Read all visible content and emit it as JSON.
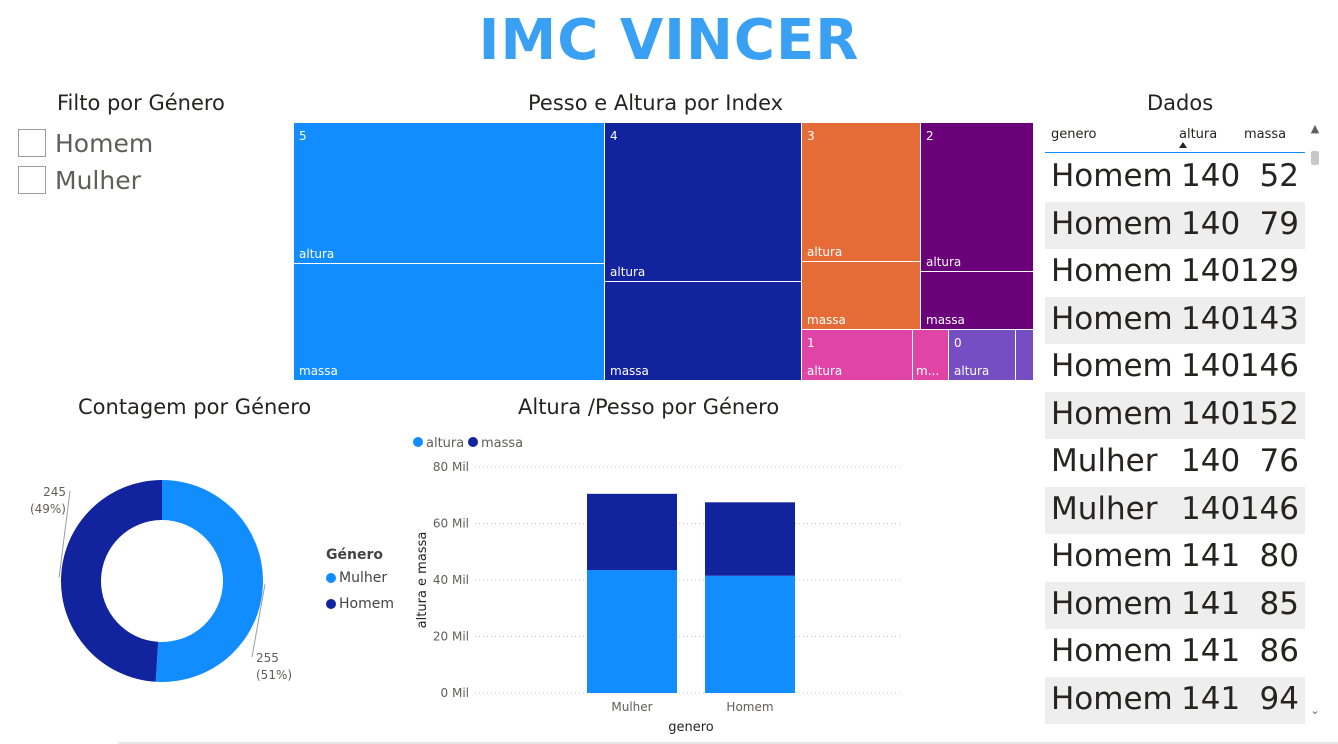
{
  "header": {
    "title": "IMC VINCER"
  },
  "slicer": {
    "title": "Filto por Género",
    "items": [
      {
        "label": "Homem"
      },
      {
        "label": "Mulher"
      }
    ]
  },
  "treemap": {
    "title": "Pesso e Altura por Index",
    "colors": {
      "5": "#118dff",
      "4": "#12239e",
      "3": "#e66c37",
      "2": "#6b007b",
      "1": "#e044a7",
      "0": "#744ec2"
    },
    "groups": [
      {
        "index": "5",
        "children": [
          "altura",
          "massa"
        ]
      },
      {
        "index": "4",
        "children": [
          "altura",
          "massa"
        ]
      },
      {
        "index": "3",
        "children": [
          "altura",
          "massa"
        ]
      },
      {
        "index": "2",
        "children": [
          "altura",
          "massa"
        ]
      },
      {
        "index": "1",
        "children": [
          "altura",
          "m..."
        ]
      },
      {
        "index": "0",
        "children": [
          "altura"
        ]
      }
    ]
  },
  "table": {
    "title": "Dados",
    "columns": [
      "genero",
      "altura",
      "massa"
    ],
    "sorted_by": "altura",
    "rows": [
      [
        "Homem",
        "140",
        "52"
      ],
      [
        "Homem",
        "140",
        "79"
      ],
      [
        "Homem",
        "140",
        "129"
      ],
      [
        "Homem",
        "140",
        "143"
      ],
      [
        "Homem",
        "140",
        "146"
      ],
      [
        "Homem",
        "140",
        "152"
      ],
      [
        "Mulher",
        "140",
        "76"
      ],
      [
        "Mulher",
        "140",
        "146"
      ],
      [
        "Homem",
        "141",
        "80"
      ],
      [
        "Homem",
        "141",
        "85"
      ],
      [
        "Homem",
        "141",
        "86"
      ],
      [
        "Homem",
        "141",
        "94"
      ]
    ]
  },
  "chart_data": [
    {
      "type": "pie",
      "title": "Contagem por Género",
      "legend_title": "Género",
      "legend_position": "right",
      "categories": [
        "Mulher",
        "Homem"
      ],
      "values": [
        255,
        245
      ],
      "labels": [
        {
          "value": "255",
          "pct": "(51%)"
        },
        {
          "value": "245",
          "pct": "(49%)"
        }
      ],
      "colors": [
        "#118dff",
        "#12239e"
      ]
    },
    {
      "type": "bar",
      "title": "Altura /Pesso por Género",
      "stacked": true,
      "xlabel": "genero",
      "ylabel": "altura e massa",
      "categories": [
        "Mulher",
        "Homem"
      ],
      "series": [
        {
          "name": "altura",
          "values": [
            43500,
            41500
          ],
          "color": "#118dff"
        },
        {
          "name": "massa",
          "values": [
            27000,
            26000
          ],
          "color": "#12239e"
        }
      ],
      "ylim": [
        0,
        80000
      ],
      "yticks": [
        {
          "value": 0,
          "label": "0 Mil"
        },
        {
          "value": 20000,
          "label": "20 Mil"
        },
        {
          "value": 40000,
          "label": "40 Mil"
        },
        {
          "value": 60000,
          "label": "60 Mil"
        },
        {
          "value": 80000,
          "label": "80 Mil"
        }
      ],
      "legend_position": "top-left",
      "grid": true
    }
  ]
}
